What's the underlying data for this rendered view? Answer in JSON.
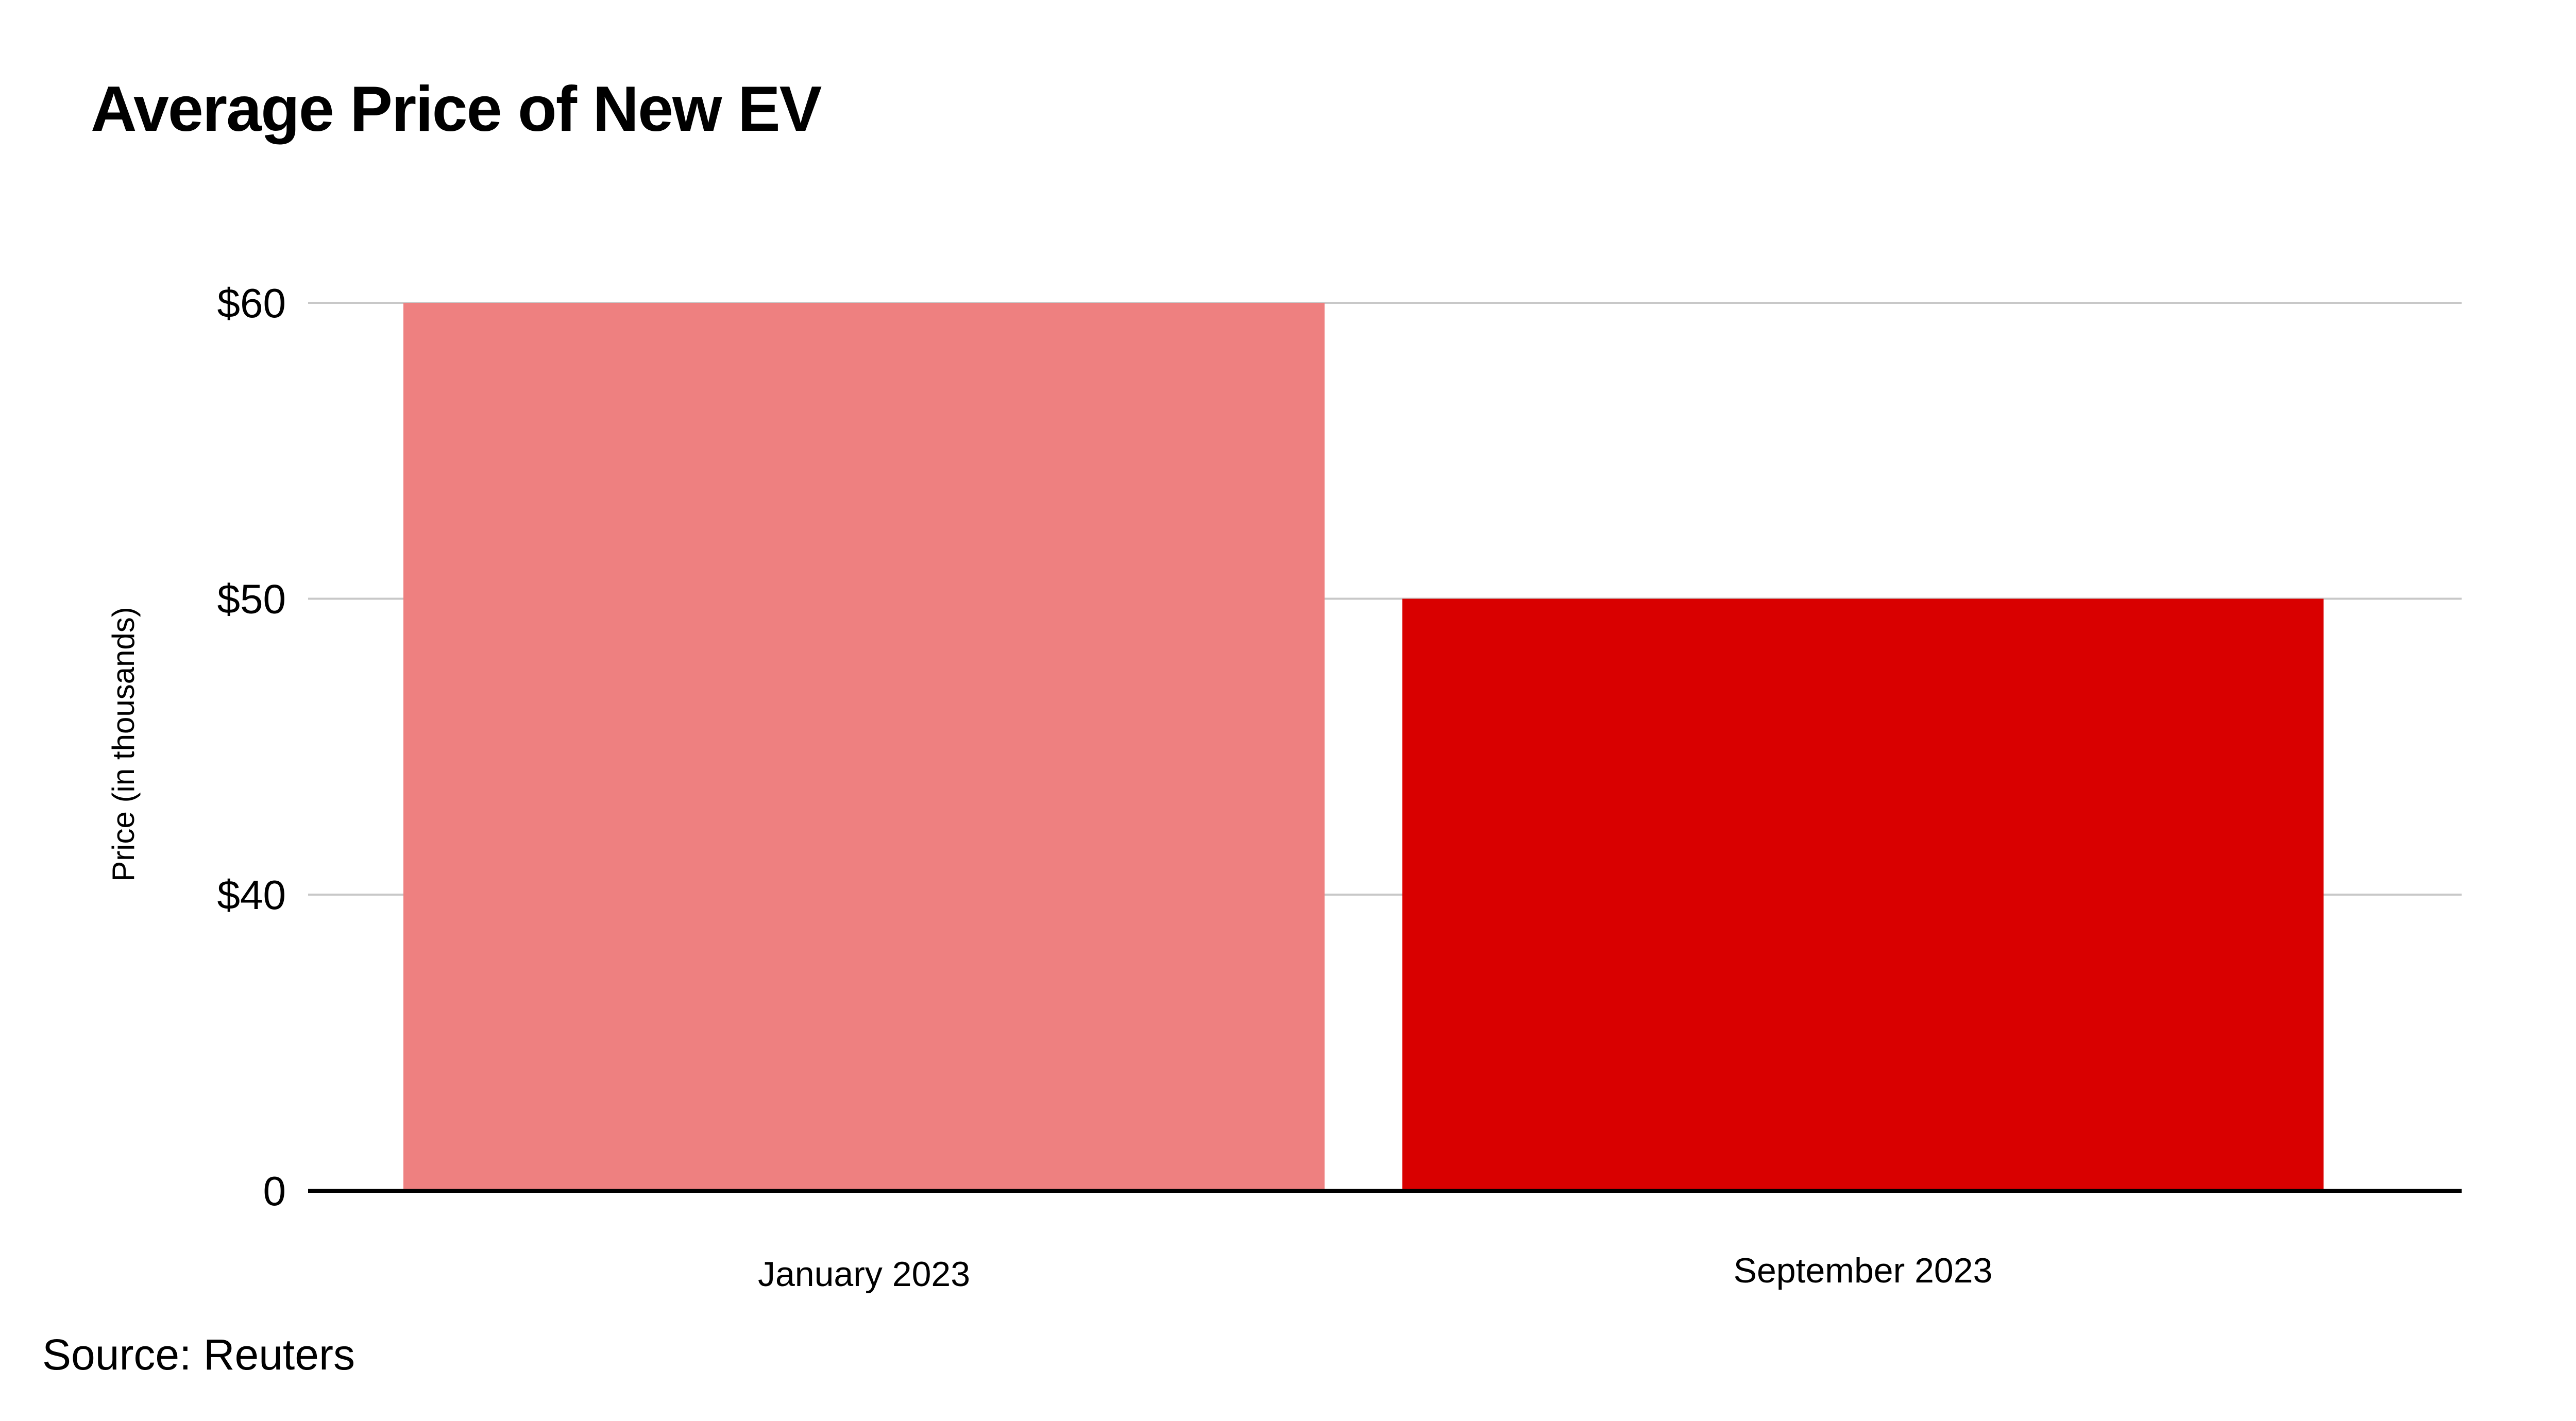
{
  "chart_data": {
    "type": "bar",
    "title": "Average Price of New EV",
    "ylabel": "Price (in thousands)",
    "xlabel": "",
    "categories": [
      "January 2023",
      "September 2023"
    ],
    "values": [
      60,
      50
    ],
    "bar_colors": [
      "#ee8080",
      "#d90000"
    ],
    "ylim": [
      0,
      60
    ],
    "y_ticks": [
      {
        "value": 0,
        "label": "0"
      },
      {
        "value": 40,
        "label": "$40"
      },
      {
        "value": 50,
        "label": "$50"
      },
      {
        "value": 60,
        "label": "$60"
      }
    ],
    "axis_break": true,
    "grid": true,
    "grid_color": "#c8c8c8",
    "baseline_color": "#000000",
    "legend": "none"
  },
  "footer": {
    "source": "Source: Reuters"
  }
}
